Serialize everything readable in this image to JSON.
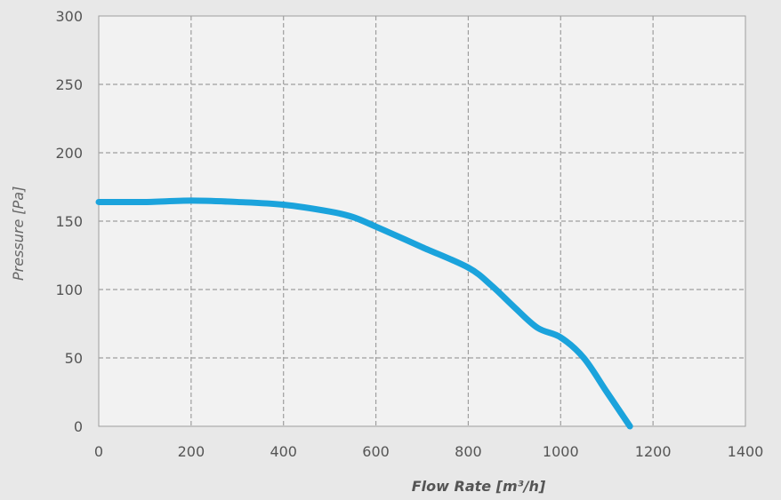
{
  "chart_data": {
    "type": "line",
    "title": "",
    "xlabel": "Flow Rate [m³/h]",
    "ylabel": "Pressure [Pa]",
    "xlim": [
      0,
      1400
    ],
    "ylim": [
      0,
      300
    ],
    "x_ticks": [
      0,
      200,
      400,
      600,
      800,
      1000,
      1200,
      1400
    ],
    "y_ticks": [
      0,
      50,
      100,
      150,
      200,
      250,
      300
    ],
    "grid": true,
    "legend": "none",
    "series": [
      {
        "color": "#1ba3dc",
        "x": [
          0,
          100,
          200,
          300,
          400,
          500,
          550,
          600,
          700,
          800,
          850,
          900,
          950,
          1000,
          1050,
          1100,
          1150
        ],
        "y": [
          164,
          164,
          165,
          164,
          162,
          157,
          153,
          146,
          131,
          116,
          103,
          87,
          72,
          65,
          50,
          25,
          0
        ]
      }
    ]
  },
  "colors": {
    "background": "#e8e8e8",
    "plot_area": "#f2f2f2",
    "grid": "#9e9e9e",
    "line": "#1ba3dc"
  }
}
